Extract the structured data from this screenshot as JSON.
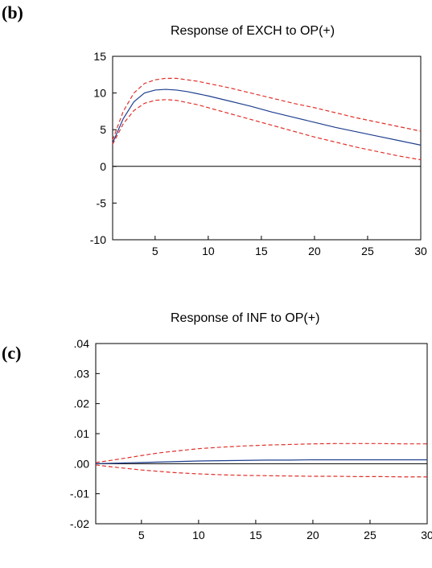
{
  "panels": [
    {
      "label": "(b)"
    },
    {
      "label": "(c)"
    }
  ],
  "chart_data": [
    {
      "type": "line",
      "title": "Response of EXCH to OP(+)",
      "xlim": [
        1,
        30
      ],
      "ylim": [
        -10,
        15
      ],
      "x_ticks": [
        5,
        10,
        15,
        20,
        25,
        30
      ],
      "x_tick_labels": [
        "5",
        "10",
        "15",
        "20",
        "25",
        "30"
      ],
      "y_ticks": [
        15,
        10,
        5,
        0,
        -5,
        -10
      ],
      "y_tick_labels": [
        "15",
        "10",
        "5",
        "0",
        "-5",
        "-10"
      ],
      "zero_line": true,
      "grid": false,
      "x": [
        1,
        2,
        3,
        4,
        5,
        6,
        7,
        8,
        9,
        10,
        12,
        14,
        16,
        18,
        20,
        22,
        24,
        26,
        28,
        30
      ],
      "series": [
        {
          "role": "response",
          "color": "#1f3f8f",
          "style": "solid",
          "values": [
            3.2,
            6.5,
            8.8,
            10.0,
            10.4,
            10.5,
            10.4,
            10.2,
            9.9,
            9.6,
            8.9,
            8.2,
            7.4,
            6.7,
            6.0,
            5.3,
            4.7,
            4.1,
            3.5,
            2.9
          ]
        },
        {
          "role": "upper-band",
          "color": "#e0302a",
          "style": "dashed",
          "values": [
            3.6,
            7.5,
            10.0,
            11.3,
            11.8,
            12.0,
            12.0,
            11.8,
            11.6,
            11.3,
            10.7,
            10.0,
            9.3,
            8.6,
            8.0,
            7.3,
            6.6,
            6.0,
            5.4,
            4.8
          ]
        },
        {
          "role": "lower-band",
          "color": "#e0302a",
          "style": "dashed",
          "values": [
            3.0,
            5.8,
            7.6,
            8.6,
            9.0,
            9.1,
            9.0,
            8.7,
            8.4,
            8.0,
            7.2,
            6.4,
            5.6,
            4.8,
            4.0,
            3.3,
            2.6,
            2.0,
            1.4,
            0.9
          ]
        }
      ]
    },
    {
      "type": "line",
      "title": "Response of INF to OP(+)",
      "xlim": [
        1,
        30
      ],
      "ylim": [
        -0.02,
        0.04
      ],
      "x_ticks": [
        5,
        10,
        15,
        20,
        25,
        30
      ],
      "x_tick_labels": [
        "5",
        "10",
        "15",
        "20",
        "25",
        "30"
      ],
      "y_ticks": [
        0.04,
        0.03,
        0.02,
        0.01,
        0.0,
        -0.01,
        -0.02
      ],
      "y_tick_labels": [
        ".04",
        ".03",
        ".02",
        ".01",
        ".00",
        "-.01",
        "-.02"
      ],
      "zero_line": true,
      "grid": false,
      "x": [
        1,
        2,
        3,
        4,
        5,
        6,
        7,
        8,
        9,
        10,
        12,
        14,
        16,
        18,
        20,
        22,
        24,
        26,
        28,
        30
      ],
      "series": [
        {
          "role": "response",
          "color": "#1f3f8f",
          "style": "solid",
          "values": [
            0.0,
            0.0001,
            0.0002,
            0.0003,
            0.0004,
            0.0005,
            0.0006,
            0.0007,
            0.0008,
            0.0009,
            0.001,
            0.0011,
            0.0012,
            0.0012,
            0.0013,
            0.0013,
            0.0013,
            0.0013,
            0.0013,
            0.0013
          ]
        },
        {
          "role": "upper-band",
          "color": "#e0302a",
          "style": "dashed",
          "values": [
            0.0004,
            0.0009,
            0.0015,
            0.0021,
            0.0027,
            0.0033,
            0.0038,
            0.0042,
            0.0046,
            0.005,
            0.0055,
            0.0059,
            0.0062,
            0.0064,
            0.0066,
            0.0067,
            0.0067,
            0.0067,
            0.0066,
            0.0066
          ]
        },
        {
          "role": "lower-band",
          "color": "#e0302a",
          "style": "dashed",
          "values": [
            -0.0004,
            -0.0009,
            -0.0013,
            -0.0017,
            -0.0021,
            -0.0024,
            -0.0027,
            -0.003,
            -0.0032,
            -0.0034,
            -0.0037,
            -0.0039,
            -0.004,
            -0.0041,
            -0.0042,
            -0.0042,
            -0.0043,
            -0.0043,
            -0.0044,
            -0.0044
          ]
        }
      ]
    }
  ]
}
